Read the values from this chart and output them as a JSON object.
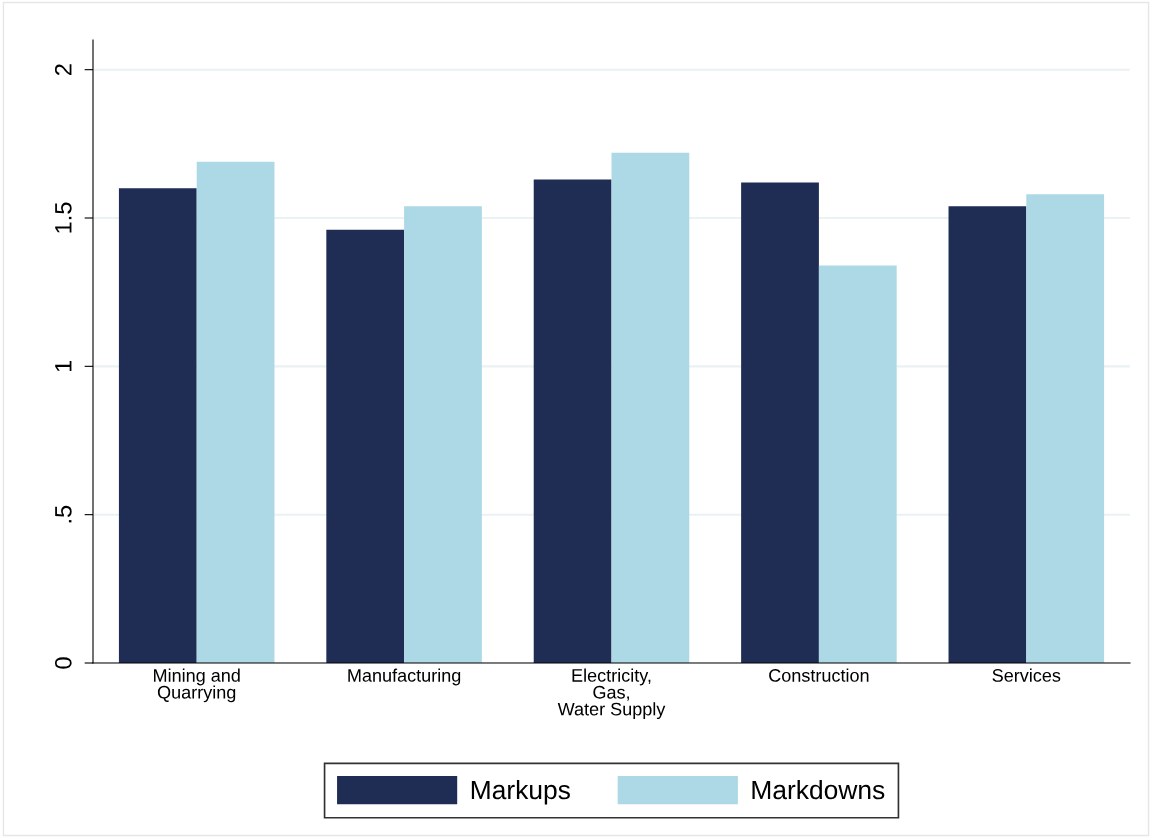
{
  "chart_data": {
    "type": "bar",
    "categories": [
      "Mining and\nQuarrying",
      "Manufacturing",
      "Electricity,\nGas,\nWater Supply",
      "Construction",
      "Services"
    ],
    "series": [
      {
        "name": "Markups",
        "color": "#1f2d55",
        "values": [
          1.6,
          1.46,
          1.63,
          1.62,
          1.54
        ]
      },
      {
        "name": "Markdowns",
        "color": "#add8e6",
        "values": [
          1.69,
          1.54,
          1.72,
          1.34,
          1.58
        ]
      }
    ],
    "ylim": [
      0,
      2.1
    ],
    "yticks": [
      0,
      {
        "value": 0.5,
        "label": ".5"
      },
      1,
      1.5,
      2
    ],
    "grid": "y",
    "legend": "bottom"
  }
}
